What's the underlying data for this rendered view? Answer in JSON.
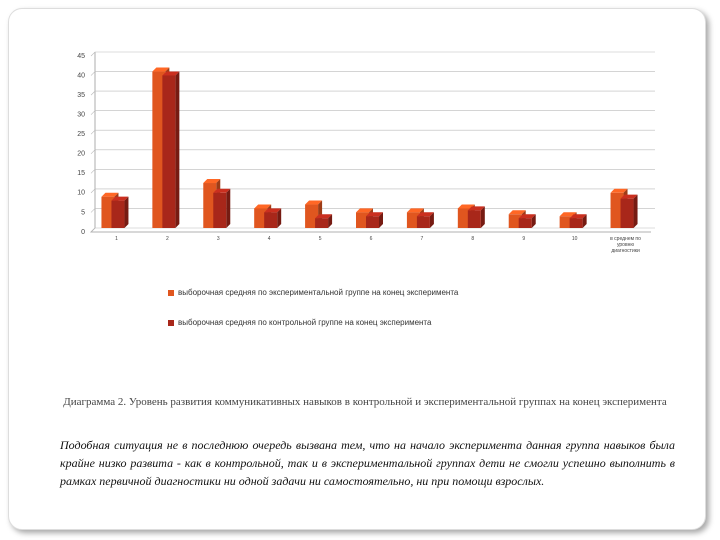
{
  "chart_data": {
    "type": "bar",
    "categories": [
      "1",
      "2",
      "3",
      "4",
      "5",
      "6",
      "7",
      "8",
      "9",
      "10",
      "в среднем по уровню диагностики"
    ],
    "series": [
      {
        "name": "выборочная средняя по экспериментальной группе на конец эксперимента",
        "color": "#e0561f",
        "values": [
          8,
          40,
          11.5,
          5,
          6,
          4,
          4,
          5,
          3.5,
          3,
          9
        ]
      },
      {
        "name": "выборочная средняя по контрольной группе на конец эксперимента",
        "color": "#a8271a",
        "values": [
          7,
          39,
          9,
          4,
          2.5,
          3,
          3,
          4.5,
          2.5,
          2.5,
          7.5
        ]
      }
    ],
    "ylim": [
      0,
      45
    ],
    "yticks": [
      0,
      5,
      10,
      15,
      20,
      25,
      30,
      35,
      40,
      45
    ],
    "grid": true
  },
  "caption": "Диаграмма 2. Уровень развития коммуникативных навыков в контрольной и экспериментальной группах на конец эксперимента",
  "text": "Подобная ситуация не в последнюю очередь вызвана тем, что на начало эксперимента данная группа навыков была крайне низко развита - как в контрольной, так и в экспериментальной группах дети не смогли успешно выполнить в рамках первичной диагностики ни одной задачи ни самостоятельно, ни при помощи взрослых."
}
